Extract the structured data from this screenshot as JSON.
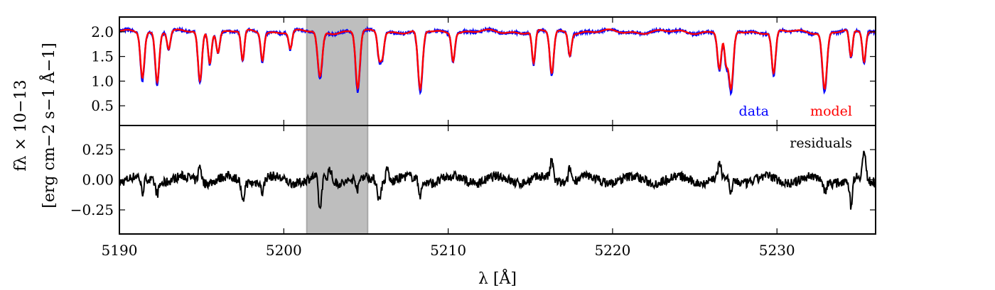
{
  "chart_data": [
    {
      "type": "line",
      "panel": "top",
      "ylabel": "f_λ × 10^−13 [erg cm^−2 s^−1 Å^−1]",
      "ylabel_line1": "fλ × 10−13",
      "ylabel_line2": "[erg cm−2 s−1 Å−1]",
      "xlim": [
        5190,
        5236
      ],
      "ylim": [
        0.1,
        2.3
      ],
      "yticks": [
        0.5,
        1.0,
        1.5,
        2.0
      ],
      "ytick_labels": [
        "0.5",
        "1.0",
        "1.5",
        "2.0"
      ],
      "shaded_region": [
        5201.4,
        5205.1
      ],
      "continuum": 2.0,
      "absorption_lines": [
        {
          "x": 5191.4,
          "depth": 0.9,
          "w": 0.12
        },
        {
          "x": 5192.3,
          "depth": 1.0,
          "w": 0.12
        },
        {
          "x": 5193.0,
          "depth": 0.35,
          "w": 0.1
        },
        {
          "x": 5194.9,
          "depth": 1.0,
          "w": 0.12
        },
        {
          "x": 5195.5,
          "depth": 0.6,
          "w": 0.1
        },
        {
          "x": 5196.0,
          "depth": 0.4,
          "w": 0.1
        },
        {
          "x": 5197.5,
          "depth": 0.6,
          "w": 0.1
        },
        {
          "x": 5198.7,
          "depth": 0.55,
          "w": 0.1
        },
        {
          "x": 5200.4,
          "depth": 0.35,
          "w": 0.1
        },
        {
          "x": 5202.2,
          "depth": 0.92,
          "w": 0.14
        },
        {
          "x": 5204.5,
          "depth": 1.15,
          "w": 0.13
        },
        {
          "x": 5205.8,
          "depth": 0.5,
          "w": 0.1
        },
        {
          "x": 5206.0,
          "depth": 0.45,
          "w": 0.1
        },
        {
          "x": 5208.3,
          "depth": 1.2,
          "w": 0.14
        },
        {
          "x": 5210.3,
          "depth": 0.55,
          "w": 0.1
        },
        {
          "x": 5215.2,
          "depth": 0.65,
          "w": 0.1
        },
        {
          "x": 5216.3,
          "depth": 0.85,
          "w": 0.12
        },
        {
          "x": 5217.4,
          "depth": 0.45,
          "w": 0.1
        },
        {
          "x": 5226.5,
          "depth": 0.75,
          "w": 0.12
        },
        {
          "x": 5226.9,
          "depth": 0.6,
          "w": 0.1
        },
        {
          "x": 5227.2,
          "depth": 1.2,
          "w": 0.14
        },
        {
          "x": 5229.8,
          "depth": 0.85,
          "w": 0.12
        },
        {
          "x": 5232.9,
          "depth": 1.15,
          "w": 0.14
        },
        {
          "x": 5234.5,
          "depth": 0.55,
          "w": 0.1
        },
        {
          "x": 5235.3,
          "depth": 0.6,
          "w": 0.1
        }
      ],
      "series": [
        {
          "name": "data",
          "color": "#0000ff"
        },
        {
          "name": "model",
          "color": "#ff0000"
        }
      ]
    },
    {
      "type": "line",
      "panel": "bottom",
      "ylim": [
        -0.45,
        0.45
      ],
      "yticks": [
        -0.25,
        0.0,
        0.25
      ],
      "ytick_labels": [
        "−0.25",
        "0.00",
        "0.25"
      ],
      "xlabel": "λ [Å]",
      "xticks": [
        5190,
        5200,
        5210,
        5220,
        5230
      ],
      "xtick_labels": [
        "5190",
        "5200",
        "5210",
        "5220",
        "5230"
      ],
      "annotation": "residuals",
      "residual_spikes": [
        {
          "x": 5191.4,
          "v": -0.13
        },
        {
          "x": 5192.3,
          "v": -0.09
        },
        {
          "x": 5194.9,
          "v": 0.14
        },
        {
          "x": 5197.5,
          "v": -0.18
        },
        {
          "x": 5198.7,
          "v": -0.11
        },
        {
          "x": 5202.2,
          "v": -0.28
        },
        {
          "x": 5202.8,
          "v": 0.1
        },
        {
          "x": 5204.5,
          "v": -0.1
        },
        {
          "x": 5205.8,
          "v": -0.15
        },
        {
          "x": 5206.3,
          "v": 0.12
        },
        {
          "x": 5208.3,
          "v": -0.12
        },
        {
          "x": 5216.3,
          "v": 0.15
        },
        {
          "x": 5217.4,
          "v": 0.12
        },
        {
          "x": 5226.5,
          "v": 0.1
        },
        {
          "x": 5227.2,
          "v": -0.12
        },
        {
          "x": 5232.9,
          "v": -0.1
        },
        {
          "x": 5234.5,
          "v": -0.23
        },
        {
          "x": 5235.3,
          "v": 0.22
        }
      ],
      "series": [
        {
          "name": "residuals",
          "color": "#000000"
        }
      ]
    }
  ],
  "legend": {
    "data_label": "data",
    "model_label": "model",
    "residuals_label": "residuals"
  }
}
